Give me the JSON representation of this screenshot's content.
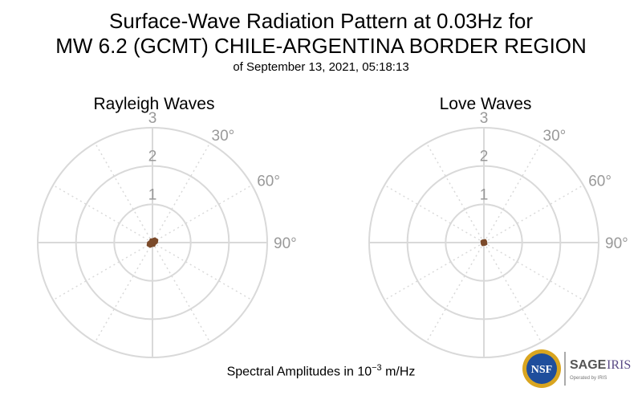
{
  "title": {
    "line1": "Surface-Wave Radiation Pattern at 0.03Hz for",
    "line2": "MW 6.2 (GCMT) CHILE-ARGENTINA BORDER REGION",
    "line3": "of September 13, 2021, 05:18:13"
  },
  "footer": {
    "prefix": "Spectral Amplitudes in 10",
    "exponent": "−3",
    "suffix": " m/Hz"
  },
  "logo": {
    "nsf": "NSF",
    "sage": "SAGE",
    "iris": "IRIS",
    "operated": "Operated by IRIS"
  },
  "colors": {
    "grid": "#d9d9d9",
    "label": "#999999",
    "pattern": "#7b4a2a"
  },
  "chart_data": [
    {
      "type": "polar",
      "title": "Rayleigh Waves",
      "radial_ticks": [
        "1",
        "2",
        "3"
      ],
      "rmax": 3,
      "angle_labels": [
        "30°",
        "60°",
        "90°"
      ],
      "angle_label_values": [
        30,
        60,
        90
      ],
      "pattern": {
        "azimuth_deg": [
          0,
          30,
          60,
          90,
          120,
          150,
          180,
          210,
          240,
          270,
          300,
          330
        ],
        "amplitude": [
          0.08,
          0.12,
          0.14,
          0.11,
          0.07,
          0.09,
          0.08,
          0.12,
          0.14,
          0.11,
          0.07,
          0.09
        ]
      }
    },
    {
      "type": "polar",
      "title": "Love Waves",
      "radial_ticks": [
        "1",
        "2",
        "3"
      ],
      "rmax": 3,
      "angle_labels": [
        "30°",
        "60°",
        "90°"
      ],
      "angle_label_values": [
        30,
        60,
        90
      ],
      "pattern": {
        "azimuth_deg": [
          0,
          30,
          60,
          90,
          120,
          150,
          180,
          210,
          240,
          270,
          300,
          330
        ],
        "amplitude": [
          0.05,
          0.07,
          0.06,
          0.05,
          0.07,
          0.06,
          0.05,
          0.07,
          0.06,
          0.05,
          0.07,
          0.06
        ]
      }
    }
  ]
}
